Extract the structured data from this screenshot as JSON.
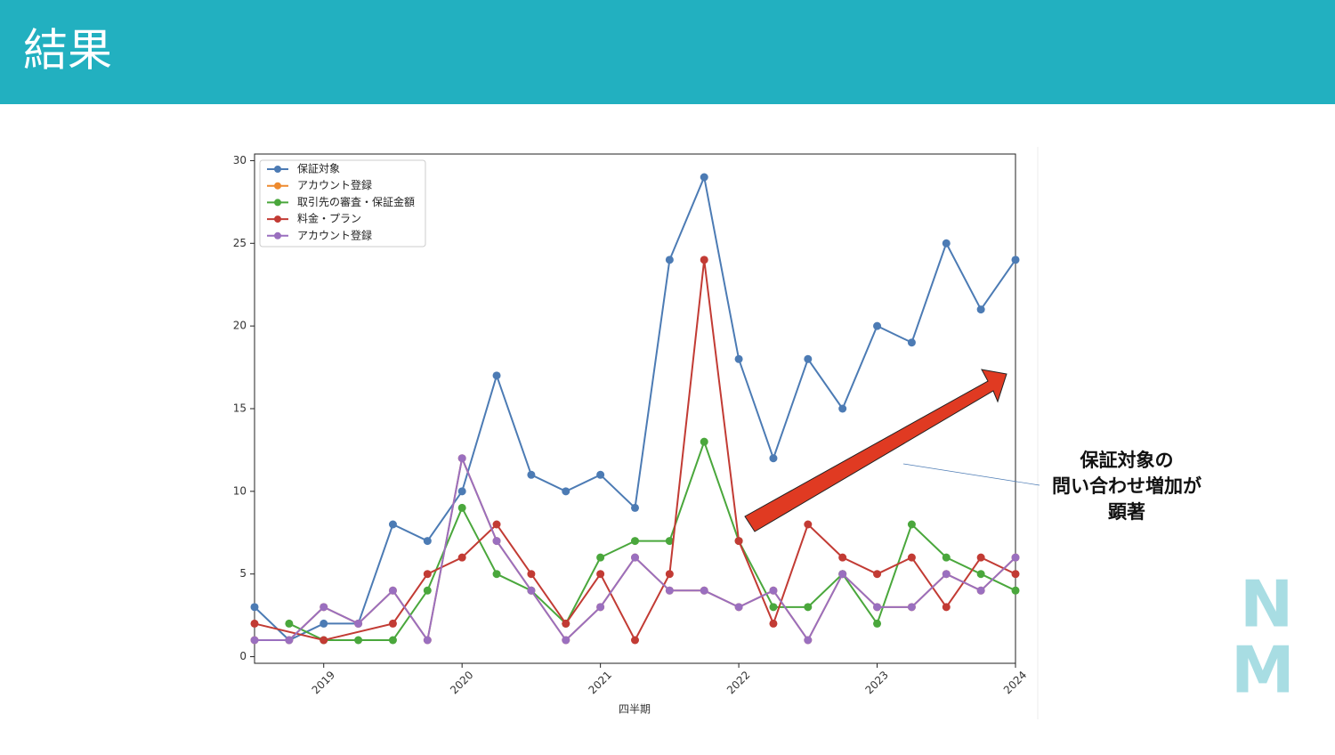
{
  "header": {
    "title": "結果"
  },
  "chart_data": {
    "type": "line",
    "xlabel": "四半期",
    "x": [
      2018.5,
      2018.75,
      2019,
      2019.25,
      2019.5,
      2019.75,
      2020,
      2020.25,
      2020.5,
      2020.75,
      2021,
      2021.25,
      2021.5,
      2021.75,
      2022,
      2022.25,
      2022.5,
      2022.75,
      2023,
      2023.25,
      2023.5,
      2023.75,
      2024
    ],
    "xlim": [
      2018.5,
      2024
    ],
    "xticks": [
      2019,
      2020,
      2021,
      2022,
      2023,
      2024
    ],
    "ylim": [
      -0.4,
      30.4
    ],
    "yticks": [
      0,
      5,
      10,
      15,
      20,
      25,
      30
    ],
    "legend": "upper left",
    "series": [
      {
        "name": "保証対象",
        "color": "#4c7bb4",
        "values": [
          3,
          1,
          2,
          2,
          8,
          7,
          10,
          17,
          11,
          10,
          11,
          9,
          24,
          29,
          18,
          12,
          18,
          15,
          20,
          19,
          25,
          21,
          24
        ]
      },
      {
        "name": "アカウント登録",
        "color": "#ee8a2e",
        "values": [
          1,
          1,
          3,
          2,
          4,
          1,
          12,
          7,
          4,
          1,
          3,
          6,
          4,
          4,
          3,
          4,
          1,
          5,
          3,
          3,
          5,
          4,
          6
        ]
      },
      {
        "name": "取引先の審査・保証金額",
        "color": "#4aa73c",
        "values": [
          null,
          2,
          1,
          1,
          1,
          4,
          9,
          5,
          4,
          2,
          6,
          7,
          7,
          13,
          7,
          3,
          3,
          5,
          2,
          8,
          6,
          5,
          4
        ]
      },
      {
        "name": "料金・プラン",
        "color": "#c23b34",
        "x": [
          2018.5,
          2019,
          2019.5,
          2019.75,
          2020,
          2020.25,
          2020.5,
          2020.75,
          2021,
          2021.25,
          2021.5,
          2021.75,
          2022,
          2022.25,
          2022.5,
          2022.75,
          2023,
          2023.25,
          2023.5,
          2023.75,
          2024
        ],
        "values": [
          2,
          1,
          2,
          5,
          6,
          8,
          5,
          2,
          5,
          1,
          5,
          24,
          7,
          2,
          8,
          6,
          5,
          6,
          3,
          6,
          5
        ]
      },
      {
        "name": "アカウント登録",
        "color": "#9a6fbf",
        "values": [
          1,
          1,
          3,
          2,
          4,
          1,
          12,
          7,
          4,
          1,
          3,
          6,
          4,
          4,
          3,
          4,
          1,
          5,
          3,
          3,
          5,
          4,
          6
        ]
      }
    ]
  },
  "annotation": {
    "lines": [
      "保証対象の",
      "問い合わせ増加が",
      "顕著"
    ]
  },
  "logo": [
    "N",
    "M"
  ]
}
